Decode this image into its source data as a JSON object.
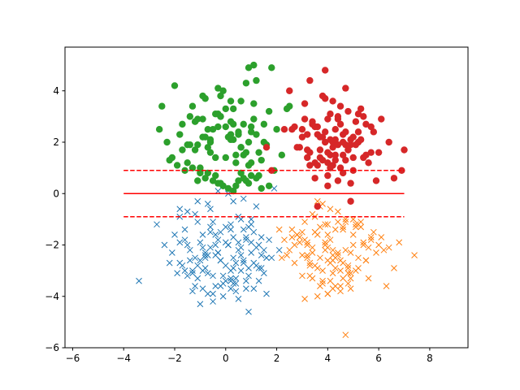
{
  "chart_data": {
    "type": "scatter",
    "title": "",
    "xlabel": "",
    "ylabel": "",
    "xlim": [
      -6.3,
      9.5
    ],
    "ylim": [
      -6.0,
      5.7
    ],
    "xticks": [
      -6,
      -4,
      -2,
      0,
      2,
      4,
      6,
      8
    ],
    "yticks": [
      -6,
      -4,
      -2,
      0,
      2,
      4
    ],
    "xtick_labels": [
      "−6",
      "−4",
      "−2",
      "0",
      "2",
      "4",
      "6",
      "8"
    ],
    "ytick_labels": [
      "−6",
      "−4",
      "−2",
      "0",
      "2",
      "4"
    ],
    "grid": false,
    "legend": "none",
    "series": [
      {
        "marker": "x",
        "color": "#1f77b4",
        "approx_count": 250,
        "x": [
          -0.3,
          0.5,
          -1.2,
          0.2,
          -0.8,
          1.0,
          -0.1,
          0.7,
          -0.5,
          0.3,
          -1.5,
          1.4,
          0.0,
          -0.9,
          0.6,
          -0.3,
          1.1,
          -1.8,
          0.4,
          -0.6,
          0.9,
          -1.1,
          0.2,
          1.6,
          -0.4,
          0.8,
          -1.4,
          0.1,
          -0.7,
          1.3,
          -0.2,
          0.5,
          -1.0,
          0.3,
          -2.1,
          1.7,
          -0.5,
          0.6,
          -1.3,
          0.0,
          0.9,
          -0.8,
          1.2,
          -0.1,
          -1.6,
          0.4,
          -0.9,
          1.5,
          0.2,
          -0.4,
          -2.7,
          -3.4,
          -1.0,
          0.9,
          1.6,
          -1.8,
          -0.6,
          0.3,
          1.9,
          -1.2,
          0.7,
          -0.3,
          1.2,
          -1.5,
          0.1,
          -0.7,
          1.0,
          -2.2,
          0.5,
          -0.2,
          1.4,
          -1.1,
          0.8,
          -0.4,
          0.2,
          -1.9,
          1.1,
          -0.6,
          0.6,
          -1.3,
          1.8,
          0.0,
          -0.8,
          0.4,
          -1.6,
          1.3,
          -0.1,
          0.7,
          -1.0,
          -0.5,
          0.3,
          -1.7,
          1.5,
          -0.3,
          0.9,
          -1.2,
          0.1,
          -0.9,
          1.1,
          -0.4,
          2.1,
          -2.0,
          0.6,
          -0.7,
          1.0,
          -1.4,
          0.2,
          -0.2,
          0.8,
          -1.1,
          -1.8,
          -1.8,
          -1.1,
          -0.8,
          1.4,
          0.3,
          -1.6,
          0.5,
          -0.5,
          1.2,
          -2.4,
          0.0,
          0.7,
          -1.3,
          -0.6,
          1.6,
          0.4,
          -0.9,
          1.0,
          -0.2,
          -1.5,
          0.8,
          0.2,
          -0.7,
          1.3
        ],
        "y": [
          -1.8,
          -2.2,
          -2.5,
          -1.4,
          -2.9,
          -1.9,
          -3.2,
          -2.6,
          -1.1,
          -3.5,
          -2.0,
          -2.4,
          -2.8,
          -1.6,
          -3.0,
          -2.3,
          -1.5,
          -2.7,
          -3.8,
          -2.1,
          -2.9,
          -3.3,
          -1.2,
          -2.5,
          -3.6,
          -1.7,
          -2.2,
          -2.0,
          -3.1,
          -3.4,
          -2.6,
          -0.9,
          -1.9,
          -2.9,
          -2.3,
          -1.8,
          -3.9,
          -2.4,
          -3.0,
          -1.3,
          -3.2,
          -2.5,
          -2.1,
          -4.0,
          -1.4,
          -2.7,
          -3.7,
          -2.2,
          -3.3,
          -1.6,
          -1.2,
          -3.4,
          -4.3,
          -4.6,
          -3.9,
          -1.9,
          -0.6,
          -0.3,
          0.2,
          -0.8,
          -0.2,
          0.1,
          -0.5,
          -0.7,
          0.0,
          -0.4,
          -1.0,
          -2.7,
          -4.1,
          -3.6,
          -2.9,
          -1.1,
          -3.4,
          -2.0,
          -3.0,
          -3.1,
          -2.7,
          -1.5,
          -2.1,
          -3.8,
          -2.5,
          -1.9,
          -2.4,
          -3.3,
          -1.8,
          -2.9,
          -3.5,
          -1.4,
          -2.6,
          -3.2,
          -1.7,
          -2.8,
          -3.1,
          -2.3,
          -1.3,
          -3.6,
          -2.0,
          -3.0,
          -3.7,
          -2.4,
          -2.2,
          -1.6,
          -1.0,
          -3.9,
          -2.3,
          -2.6,
          -3.4,
          -1.5,
          -3.7,
          -2.8,
          -0.6,
          -0.9,
          -0.3,
          -2.3,
          -1.7,
          -2.5,
          -3.0,
          -1.9,
          -4.2,
          -2.8,
          -2.0,
          -3.4,
          -2.7,
          -3.1,
          -1.3,
          -2.5,
          -3.5,
          -2.1,
          -1.2,
          -2.6,
          -3.2,
          -1.8,
          -3.7,
          -2.4,
          -2.0
        ]
      },
      {
        "marker": "x",
        "color": "#ff7f0e",
        "approx_count": 250,
        "x": [
          4.0,
          3.5,
          4.8,
          3.2,
          4.4,
          5.1,
          3.8,
          4.2,
          2.9,
          5.5,
          4.6,
          3.4,
          4.1,
          3.7,
          5.0,
          3.1,
          4.5,
          4.9,
          3.6,
          4.3,
          5.3,
          2.7,
          4.0,
          3.9,
          5.7,
          3.3,
          4.7,
          4.2,
          3.0,
          5.2,
          4.4,
          3.8,
          2.5,
          6.1,
          4.0,
          3.5,
          4.8,
          5.4,
          3.2,
          4.6,
          3.9,
          2.8,
          5.9,
          4.1,
          3.4,
          4.3,
          6.4,
          2.4,
          4.9,
          3.7,
          6.3,
          6.6,
          7.4,
          6.8,
          4.7,
          3.1,
          3.6,
          4.5,
          5.6,
          2.2,
          4.0,
          3.3,
          5.0,
          4.2,
          2.6,
          4.7,
          3.8,
          5.2,
          3.0,
          6.0,
          4.4,
          3.5,
          4.9,
          2.9,
          4.1,
          5.5,
          3.7,
          4.3,
          3.2,
          5.8,
          4.6,
          3.9,
          2.3,
          5.1,
          4.0,
          3.4,
          4.8,
          5.3,
          3.6,
          2.7,
          4.2,
          6.2,
          3.1,
          4.5,
          5.0,
          3.8,
          2.1,
          4.4,
          5.7,
          3.3,
          4.7,
          4.0,
          3.0,
          5.4,
          4.3,
          3.6,
          2.8,
          4.9,
          3.9,
          5.1,
          4.1,
          3.5,
          4.6,
          3.2,
          5.6,
          4.8,
          2.6,
          4.2,
          3.7,
          5.2,
          3.4,
          4.5
        ],
        "y": [
          -2.1,
          -1.5,
          -2.8,
          -1.9,
          -2.4,
          -1.2,
          -3.0,
          -2.2,
          -1.7,
          -2.6,
          -1.4,
          -3.3,
          -1.8,
          -2.5,
          -2.0,
          -1.1,
          -3.6,
          -2.3,
          -1.6,
          -2.9,
          -1.3,
          -2.7,
          -3.9,
          -2.0,
          -1.8,
          -3.2,
          -1.0,
          -2.4,
          -1.5,
          -2.9,
          -0.7,
          -3.5,
          -2.2,
          -1.7,
          -2.6,
          -0.9,
          -3.1,
          -2.0,
          -2.5,
          -1.3,
          -1.9,
          -1.6,
          -2.3,
          -3.4,
          -0.8,
          -1.4,
          -2.1,
          -2.4,
          -3.7,
          -0.5,
          -3.6,
          -2.9,
          -2.4,
          -1.9,
          -5.5,
          -4.1,
          -4.0,
          -3.8,
          -3.3,
          -2.5,
          -1.2,
          -2.7,
          -1.6,
          -3.1,
          -1.4,
          -2.2,
          -0.4,
          -2.5,
          -3.2,
          -2.0,
          -1.1,
          -2.8,
          -3.3,
          -1.9,
          -0.6,
          -2.6,
          -1.3,
          -3.6,
          -2.4,
          -1.5,
          -2.7,
          -1.2,
          -1.8,
          -3.0,
          -1.6,
          -2.1,
          -3.5,
          -1.1,
          -2.9,
          -2.0,
          -3.7,
          -2.2,
          -1.8,
          -2.6,
          -1.0,
          -3.4,
          -1.4,
          -2.3,
          -1.7,
          -2.8,
          -1.1,
          -3.9,
          -2.4,
          -1.9,
          -2.5,
          -0.3,
          -1.6,
          -3.1,
          -2.2,
          -1.3,
          -2.7,
          -1.5,
          -3.3,
          -2.0,
          -2.1,
          -2.9,
          -1.7,
          -2.6,
          -3.6,
          -1.2,
          -2.3,
          -3.0
        ]
      },
      {
        "marker": "o",
        "color": "#2ca02c",
        "approx_count": 250,
        "x": [
          0.2,
          -0.5,
          0.8,
          -1.1,
          0.4,
          1.2,
          -0.2,
          0.6,
          -0.8,
          0.0,
          1.5,
          -1.4,
          0.3,
          -0.6,
          0.9,
          -0.3,
          1.1,
          -1.7,
          0.5,
          -0.9,
          0.7,
          -1.2,
          0.1,
          1.4,
          -0.4,
          0.9,
          -1.5,
          0.2,
          -0.7,
          1.3,
          -0.1,
          0.5,
          -1.0,
          0.3,
          -2.1,
          1.7,
          -0.6,
          0.6,
          -1.3,
          0.0,
          0.8,
          -0.9,
          1.0,
          -0.2,
          -1.8,
          0.4,
          -0.8,
          1.6,
          0.2,
          -0.3,
          -2.5,
          -2.6,
          -2.0,
          0.9,
          1.1,
          1.8,
          1.2,
          2.4,
          2.5,
          2.2,
          -0.3,
          -1.1,
          1.7,
          -1.6,
          0.7,
          -0.7,
          1.0,
          -1.9,
          0.5,
          -0.1,
          1.4,
          -1.0,
          0.9,
          -0.4,
          0.3,
          -2.2,
          1.2,
          -0.5,
          0.6,
          -1.3,
          1.9,
          0.1,
          -0.8,
          0.4,
          -1.5,
          1.3,
          -0.2,
          0.8,
          -1.0,
          -0.6,
          0.2,
          -1.7,
          1.5,
          -0.3,
          1.0,
          -1.2,
          0.0,
          -0.9,
          1.1,
          -0.4,
          2.0,
          -2.3,
          0.6,
          -0.7,
          1.0,
          -1.4,
          0.3,
          -0.2,
          0.7,
          -1.1
        ],
        "y": [
          2.1,
          2.5,
          1.6,
          2.9,
          1.2,
          2.3,
          3.0,
          1.8,
          2.2,
          1.4,
          2.7,
          1.9,
          3.3,
          2.0,
          1.1,
          2.6,
          3.5,
          1.7,
          2.4,
          3.8,
          1.5,
          2.8,
          2.2,
          1.3,
          3.1,
          2.0,
          1.9,
          3.6,
          2.5,
          1.6,
          4.0,
          2.3,
          1.0,
          2.7,
          1.4,
          3.2,
          2.1,
          1.8,
          3.4,
          2.6,
          4.3,
          2.9,
          1.2,
          3.0,
          2.3,
          1.5,
          3.7,
          1.9,
          2.8,
          4.1,
          3.4,
          2.5,
          4.2,
          4.9,
          5.0,
          4.9,
          4.4,
          3.3,
          3.4,
          1.5,
          0.4,
          0.5,
          0.3,
          0.9,
          0.6,
          0.8,
          0.7,
          1.1,
          0.5,
          0.3,
          0.2,
          0.9,
          0.4,
          0.7,
          0.1,
          1.3,
          0.6,
          0.5,
          0.8,
          1.0,
          0.9,
          0.2,
          0.6,
          0.3,
          1.2,
          0.7,
          0.4,
          0.5,
          0.8,
          1.6,
          2.3,
          2.7,
          2.0,
          3.1,
          2.4,
          1.7,
          3.3,
          2.2,
          2.9,
          1.4,
          2.5,
          2.0,
          3.6,
          1.8,
          2.6,
          3.0,
          2.1,
          3.8,
          2.7,
          1.9
        ]
      },
      {
        "marker": "o",
        "color": "#d62728",
        "approx_count": 250,
        "x": [
          4.2,
          3.8,
          4.6,
          3.5,
          4.9,
          4.0,
          5.2,
          3.3,
          4.4,
          4.7,
          3.9,
          5.5,
          3.6,
          4.1,
          4.8,
          3.2,
          5.0,
          4.3,
          3.7,
          5.3,
          4.5,
          3.4,
          4.9,
          4.0,
          5.7,
          3.1,
          4.6,
          4.2,
          3.8,
          5.1,
          4.4,
          3.6,
          5.4,
          4.1,
          3.0,
          4.7,
          4.3,
          5.8,
          3.5,
          4.8,
          2.8,
          6.1,
          4.0,
          4.5,
          3.3,
          5.0,
          2.6,
          6.4,
          4.2,
          3.9,
          2.5,
          2.3,
          1.6,
          1.8,
          3.6,
          4.9,
          5.9,
          6.6,
          6.9,
          7.0,
          4.1,
          3.7,
          4.6,
          3.2,
          5.2,
          4.4,
          3.9,
          5.6,
          4.0,
          3.4,
          4.7,
          5.0,
          3.1,
          4.3,
          5.3,
          3.8,
          4.5,
          2.9,
          5.7,
          4.1,
          3.6,
          4.8,
          5.1,
          3.3,
          4.2,
          6.0,
          3.9,
          4.6,
          3.0,
          5.4,
          4.4,
          3.7,
          4.9,
          2.7,
          5.5,
          4.0,
          3.5,
          4.7,
          5.2,
          3.2,
          4.3
        ],
        "y": [
          1.8,
          2.2,
          1.5,
          2.6,
          1.9,
          1.2,
          2.4,
          1.6,
          2.9,
          1.3,
          2.0,
          2.7,
          1.1,
          3.1,
          1.7,
          2.3,
          0.9,
          2.5,
          1.4,
          3.3,
          1.0,
          2.8,
          2.1,
          0.7,
          1.6,
          3.5,
          2.0,
          1.1,
          3.8,
          1.9,
          0.5,
          2.6,
          3.0,
          1.5,
          2.2,
          4.1,
          1.3,
          2.4,
          0.6,
          3.2,
          1.8,
          2.9,
          0.3,
          2.7,
          4.4,
          1.4,
          2.5,
          2.0,
          3.6,
          4.8,
          4.0,
          2.5,
          1.8,
          0.9,
          -0.5,
          -0.3,
          0.5,
          0.6,
          0.9,
          1.7,
          2.1,
          1.7,
          2.3,
          1.4,
          2.0,
          3.0,
          2.4,
          1.2,
          1.6,
          2.7,
          1.9,
          2.2,
          2.9,
          1.5,
          2.1,
          1.3,
          3.4,
          1.8,
          2.6,
          1.0,
          2.3,
          1.7,
          2.8,
          1.1,
          2.0,
          1.6,
          3.7,
          0.8,
          2.5,
          1.4,
          1.9,
          2.2,
          0.4,
          2.6,
          1.5,
          2.9,
          1.2,
          2.4,
          3.1,
          1.7,
          2.1
        ]
      }
    ],
    "lines": [
      {
        "style": "solid",
        "color": "#ff0000",
        "x": [
          -4.0,
          7.0
        ],
        "y": [
          0.0,
          0.0
        ]
      },
      {
        "style": "dashed",
        "color": "#ff0000",
        "x": [
          -4.0,
          7.0
        ],
        "y": [
          0.9,
          0.9
        ]
      },
      {
        "style": "dashed",
        "color": "#ff0000",
        "x": [
          -4.0,
          7.0
        ],
        "y": [
          -0.9,
          -0.9
        ]
      }
    ]
  }
}
